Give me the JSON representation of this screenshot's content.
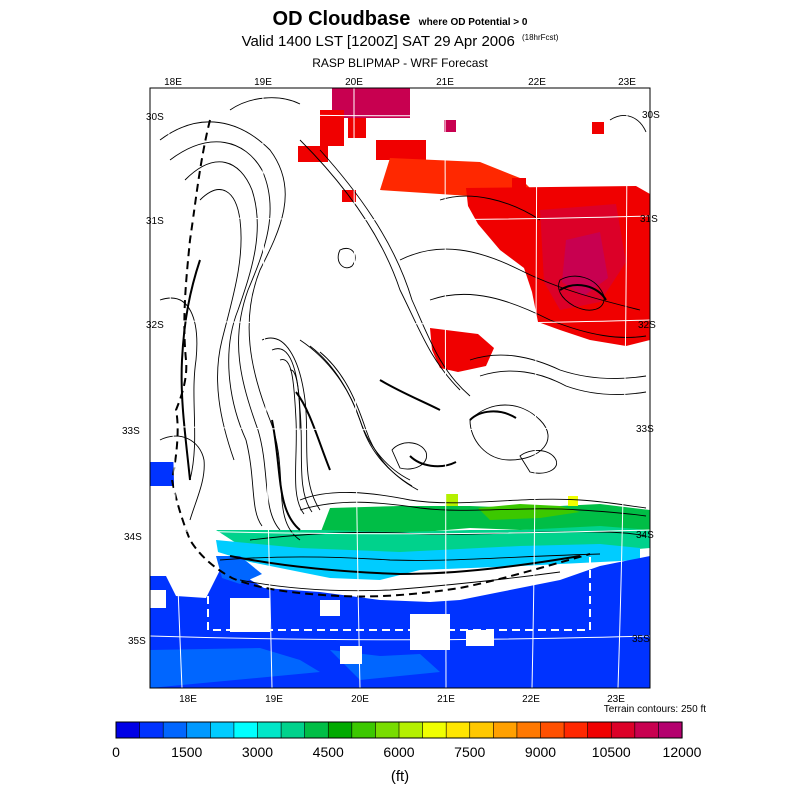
{
  "title": {
    "main": "OD Cloudbase",
    "condition": "where OD Potential > 0",
    "valid": "Valid 1400 LST [1200Z] SAT 29 Apr 2006",
    "forecast": "(18hrFcst)",
    "source": "RASP BLIPMAP - WRF Forecast"
  },
  "map": {
    "lon_labels_top": [
      "18E",
      "19E",
      "20E",
      "21E",
      "22E",
      "23E"
    ],
    "lon_labels_bottom": [
      "18E",
      "19E",
      "20E",
      "21E",
      "22E",
      "23E"
    ],
    "lat_labels_left": [
      "30S",
      "31S",
      "32S",
      "33S",
      "34S",
      "35S"
    ],
    "lat_labels_right": [
      "30S",
      "31S",
      "32S",
      "33S",
      "34S",
      "35S"
    ],
    "terrain_note": "Terrain contours: 250 ft"
  },
  "colorbar": {
    "colors": [
      "#0000e6",
      "#0033ff",
      "#0066ff",
      "#0099ff",
      "#00ccff",
      "#00ffff",
      "#00e6c8",
      "#00d28c",
      "#00be46",
      "#00aa00",
      "#3cc800",
      "#78dc00",
      "#b4f000",
      "#f0ff00",
      "#ffe600",
      "#ffc800",
      "#ffa000",
      "#ff7800",
      "#ff5000",
      "#ff2800",
      "#f00000",
      "#dc0028",
      "#c80050",
      "#b4006e"
    ],
    "tick_labels": [
      "0",
      "1500",
      "3000",
      "4500",
      "6000",
      "7500",
      "9000",
      "10500",
      "12000"
    ],
    "units": "(ft)"
  }
}
